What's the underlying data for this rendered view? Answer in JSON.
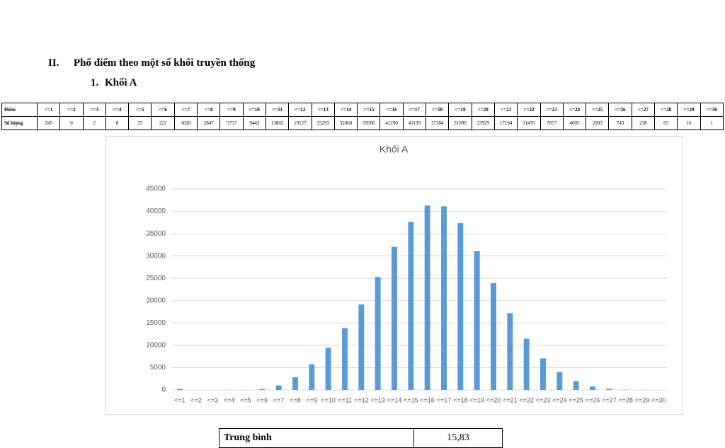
{
  "section": {
    "number": "II.",
    "title": "Phổ điểm theo một số khối truyền thống"
  },
  "subsection": {
    "number": "1.",
    "title": "Khối A"
  },
  "table": {
    "header_label": "Điểm",
    "row_label": "Số lượng"
  },
  "chart_data": {
    "type": "bar",
    "title": "Khối A",
    "categories": [
      "<=1",
      "<=2",
      "<=3",
      "<=4",
      "<=5",
      "<=6",
      "<=7",
      "<=8",
      "<=9",
      "<=10",
      "<=11",
      "<=12",
      "<=13",
      "<=14",
      "<=15",
      "<=16",
      "<=17",
      "<=18",
      "<=19",
      "<=20",
      "<=21",
      "<=22",
      "<=23",
      "<=24",
      "<=25",
      "<=26",
      "<=27",
      "<=28",
      "<=29",
      "<=30"
    ],
    "values": [
      245,
      0,
      2,
      8,
      25,
      222,
      1020,
      2847,
      5757,
      9442,
      13865,
      19127,
      25293,
      32060,
      37606,
      41290,
      41139,
      37384,
      31090,
      23929,
      17194,
      11470,
      7077,
      4005,
      2003,
      743,
      238,
      65,
      16,
      1
    ],
    "color": "#5b9bd5",
    "ylim": [
      0,
      45000
    ],
    "yticks": [
      0,
      5000,
      10000,
      15000,
      20000,
      25000,
      30000,
      35000,
      40000,
      45000
    ],
    "grid": true
  },
  "summary": {
    "label": "Trung bình",
    "value": "15,83"
  }
}
